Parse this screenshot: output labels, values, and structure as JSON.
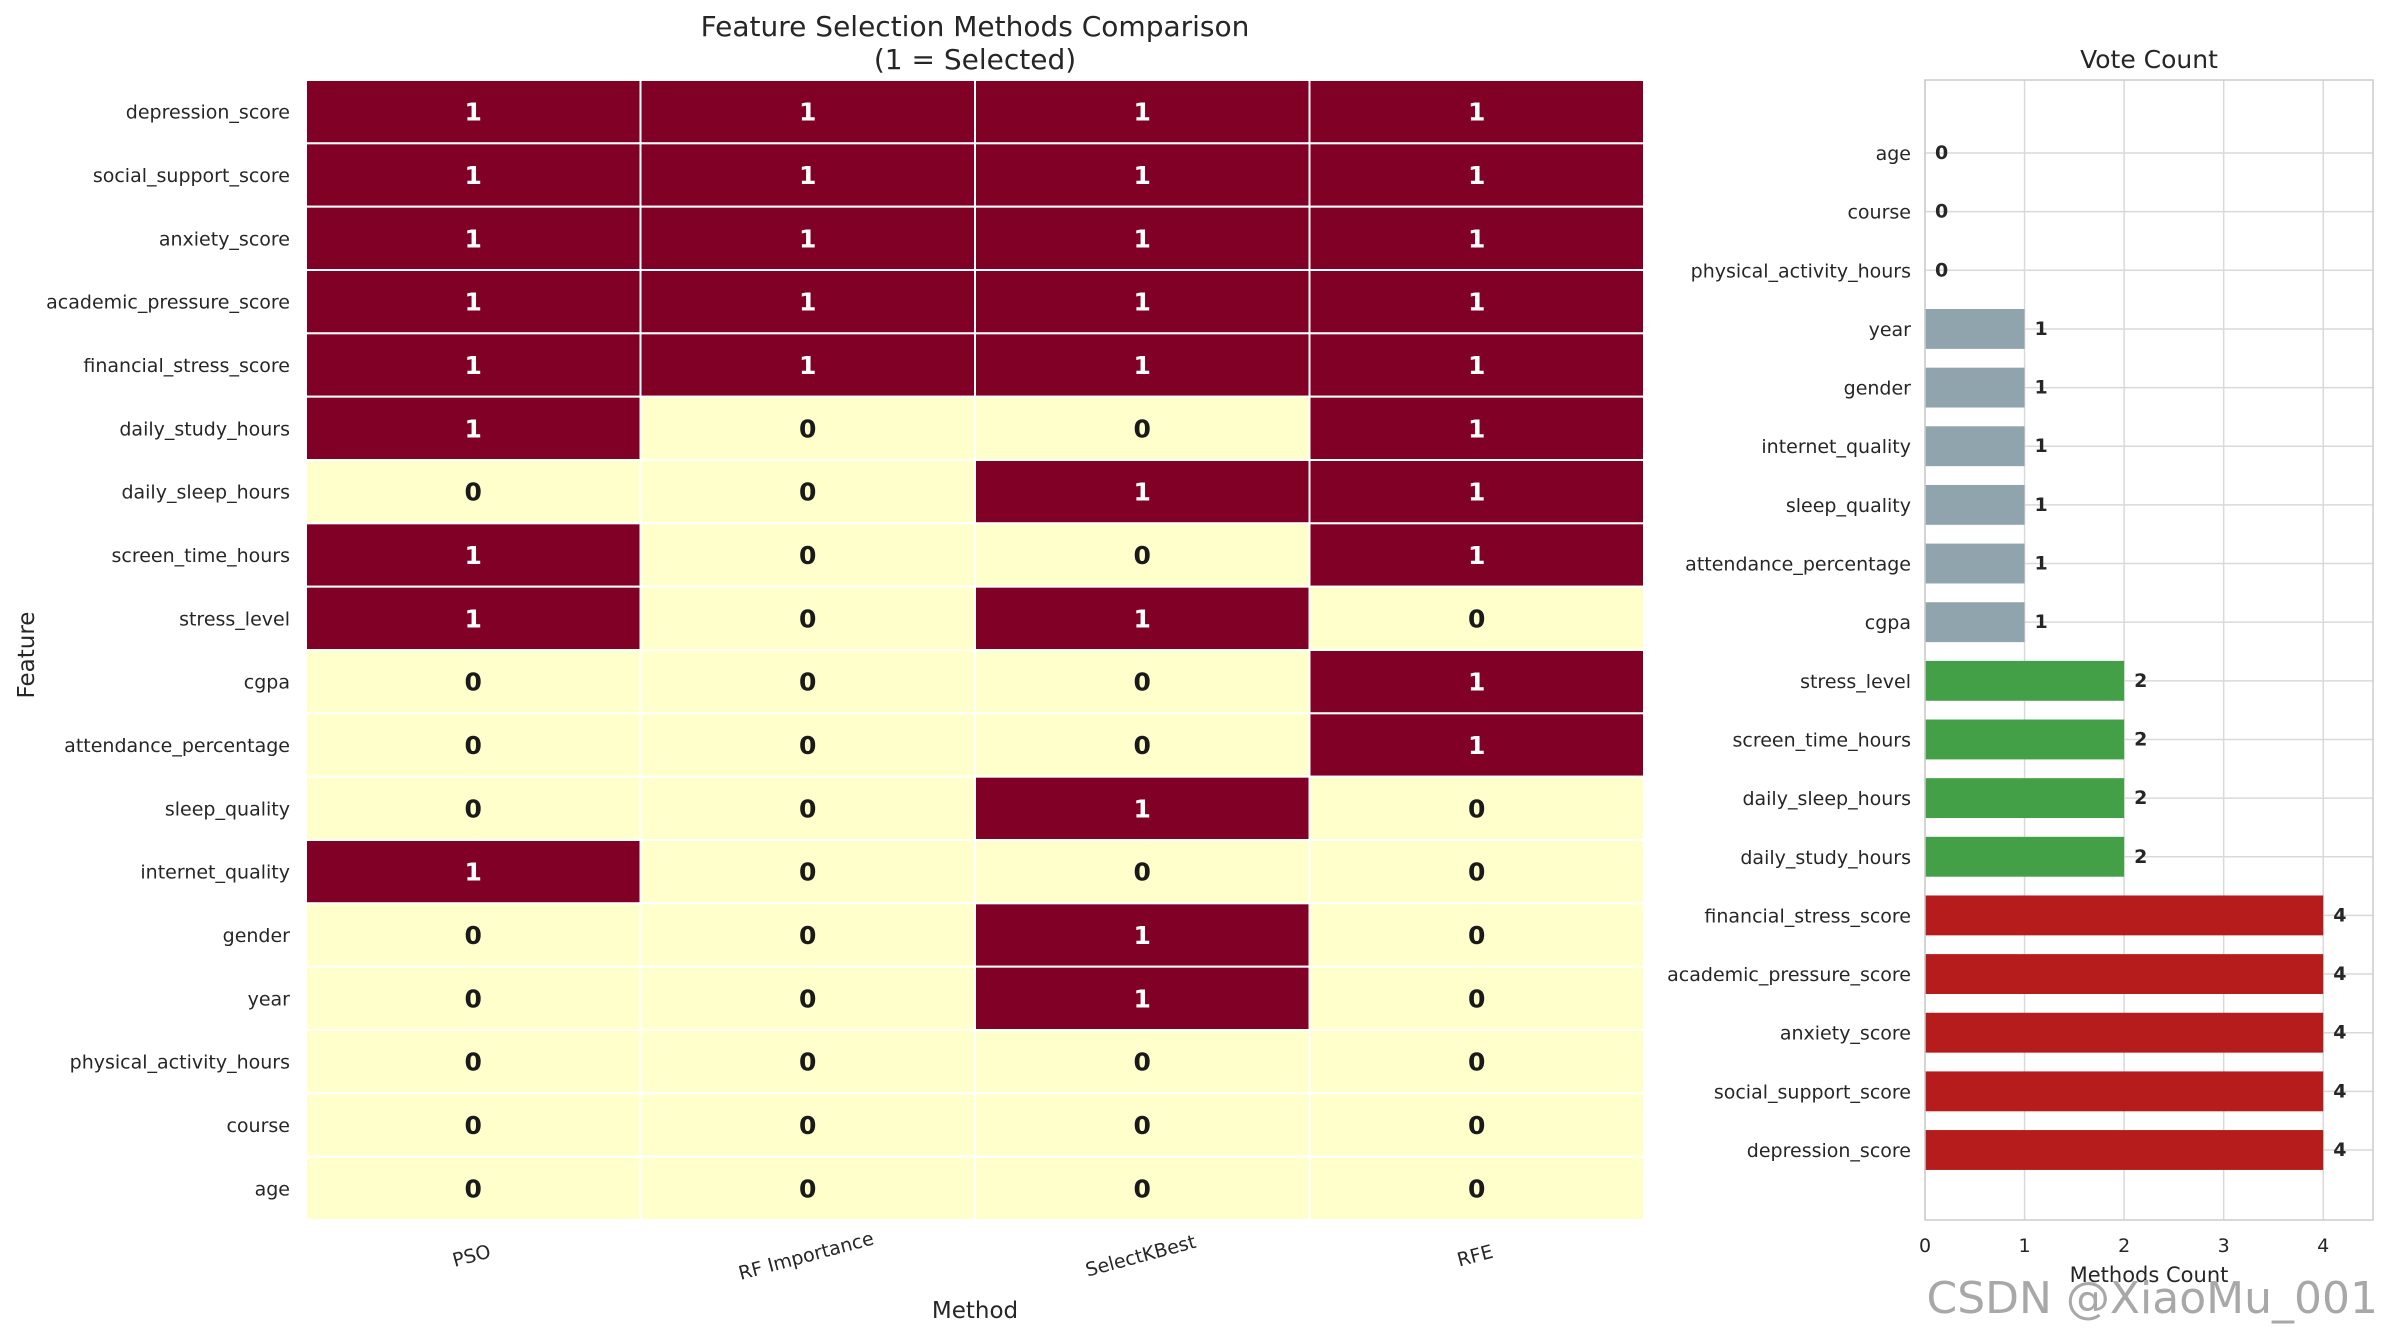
{
  "chart_data": [
    {
      "type": "heatmap",
      "title": "Feature Selection Methods Comparison",
      "subtitle": "(1 = Selected)",
      "xlabel": "Method",
      "ylabel": "Feature",
      "columns": [
        "PSO",
        "RF Importance",
        "SelectKBest",
        "RFE"
      ],
      "rows": [
        "depression_score",
        "social_support_score",
        "anxiety_score",
        "academic_pressure_score",
        "financial_stress_score",
        "daily_study_hours",
        "daily_sleep_hours",
        "screen_time_hours",
        "stress_level",
        "cgpa",
        "attendance_percentage",
        "sleep_quality",
        "internet_quality",
        "gender",
        "year",
        "physical_activity_hours",
        "course",
        "age"
      ],
      "values": [
        [
          1,
          1,
          1,
          1
        ],
        [
          1,
          1,
          1,
          1
        ],
        [
          1,
          1,
          1,
          1
        ],
        [
          1,
          1,
          1,
          1
        ],
        [
          1,
          1,
          1,
          1
        ],
        [
          1,
          0,
          0,
          1
        ],
        [
          0,
          0,
          1,
          1
        ],
        [
          1,
          0,
          0,
          1
        ],
        [
          1,
          0,
          1,
          0
        ],
        [
          0,
          0,
          0,
          1
        ],
        [
          0,
          0,
          0,
          1
        ],
        [
          0,
          0,
          1,
          0
        ],
        [
          1,
          0,
          0,
          0
        ],
        [
          0,
          0,
          1,
          0
        ],
        [
          0,
          0,
          1,
          0
        ],
        [
          0,
          0,
          0,
          0
        ],
        [
          0,
          0,
          0,
          0
        ],
        [
          0,
          0,
          0,
          0
        ]
      ],
      "colors": {
        "selected": "#800026",
        "not_selected": "#ffffcc",
        "text_selected": "#ffffff",
        "text_not_selected": "#1a1a1a"
      }
    },
    {
      "type": "bar",
      "orientation": "horizontal",
      "title": "Vote Count",
      "xlabel": "Methods Count",
      "ylabel": "",
      "categories": [
        "age",
        "course",
        "physical_activity_hours",
        "year",
        "gender",
        "internet_quality",
        "sleep_quality",
        "attendance_percentage",
        "cgpa",
        "stress_level",
        "screen_time_hours",
        "daily_sleep_hours",
        "daily_study_hours",
        "financial_stress_score",
        "academic_pressure_score",
        "anxiety_score",
        "social_support_score",
        "depression_score"
      ],
      "values": [
        0,
        0,
        0,
        1,
        1,
        1,
        1,
        1,
        1,
        2,
        2,
        2,
        2,
        4,
        4,
        4,
        4,
        4
      ],
      "xlim": [
        0,
        4.5
      ],
      "xticks": [
        "0",
        "1",
        "2",
        "3",
        "4"
      ],
      "grid": true,
      "colors": {
        "4": "#b71c1c",
        "2": "#43a047",
        "1": "#90a4ae",
        "0": "#90a4ae"
      }
    }
  ],
  "watermark": "CSDN @XiaoMu_001"
}
